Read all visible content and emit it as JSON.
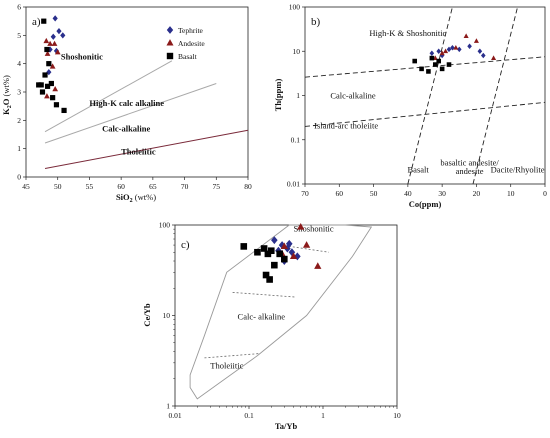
{
  "colors": {
    "tephrite": "#2a2f8c",
    "andesite": "#8b1a1a",
    "basalt": "#000000",
    "boundary_a": "#a9a9a9",
    "boundary_dark": "#7a2a3a",
    "field_outline": "#9a9a9a"
  },
  "chart_data": [
    {
      "type": "scatter",
      "panel_label": "a)",
      "xlabel": "SiO2 (wt%)",
      "ylabel": "K2O (wt%)",
      "xlim": [
        45,
        80
      ],
      "ylim": [
        0,
        6
      ],
      "xticks": [
        "45",
        "50",
        "55",
        "60",
        "65",
        "70",
        "75",
        "80"
      ],
      "yticks": [
        "0",
        "1",
        "2",
        "3",
        "4",
        "5",
        "6"
      ],
      "legend": {
        "placement": "top-right",
        "entries": [
          {
            "name": "Tephrite",
            "marker": "diamond",
            "color_key": "tephrite"
          },
          {
            "name": "Andesite",
            "marker": "triangle",
            "color_key": "andesite"
          },
          {
            "name": "Basalt",
            "marker": "square",
            "color_key": "basalt"
          }
        ]
      },
      "field_labels": [
        {
          "text": "Shoshonitic",
          "x": 50.5,
          "y": 4.15,
          "bold": true
        },
        {
          "text": "High-K calc alkaline",
          "x": 55,
          "y": 2.5,
          "bold": true
        },
        {
          "text": "Calc-alkaline",
          "x": 57,
          "y": 1.6,
          "bold": true
        },
        {
          "text": "Tholeiitic",
          "x": 60,
          "y": 0.8,
          "bold": true
        }
      ],
      "boundaries": [
        {
          "points": [
            [
              48,
              1.6
            ],
            [
              68,
              4.1
            ]
          ],
          "color_key": "boundary_a"
        },
        {
          "points": [
            [
              48,
              1.2
            ],
            [
              75,
              3.3
            ]
          ],
          "color_key": "boundary_a"
        },
        {
          "points": [
            [
              48,
              0.3
            ],
            [
              80,
              1.65
            ]
          ],
          "color_key": "boundary_dark"
        }
      ],
      "series": [
        {
          "name": "Tephrite",
          "marker": "diamond",
          "color_key": "tephrite",
          "points": [
            [
              49.6,
              5.6
            ],
            [
              50.2,
              5.15
            ],
            [
              50.8,
              5.0
            ],
            [
              49.3,
              4.95
            ],
            [
              48.8,
              4.5
            ],
            [
              49.8,
              4.45
            ],
            [
              48.6,
              3.7
            ]
          ]
        },
        {
          "name": "Andesite",
          "marker": "triangle",
          "color_key": "andesite",
          "points": [
            [
              48.2,
              4.8
            ],
            [
              48.8,
              4.7
            ],
            [
              49.5,
              4.7
            ],
            [
              50.0,
              4.4
            ],
            [
              48.4,
              4.35
            ],
            [
              49.2,
              3.9
            ],
            [
              49.6,
              3.1
            ],
            [
              48.3,
              2.85
            ]
          ]
        },
        {
          "name": "Basalt",
          "marker": "square",
          "color_key": "basalt",
          "points": [
            [
              47.8,
              5.5
            ],
            [
              48.3,
              4.5
            ],
            [
              48.6,
              4.0
            ],
            [
              48.0,
              3.6
            ],
            [
              49.0,
              3.3
            ],
            [
              47.0,
              3.25
            ],
            [
              47.4,
              3.25
            ],
            [
              48.4,
              3.2
            ],
            [
              47.6,
              3.0
            ],
            [
              49.2,
              2.8
            ],
            [
              49.8,
              2.55
            ],
            [
              51.0,
              2.35
            ]
          ]
        }
      ]
    },
    {
      "type": "scatter",
      "panel_label": "b)",
      "xlabel": "Co(ppm)",
      "ylabel": "Th(ppm)",
      "xlim": [
        70,
        0
      ],
      "ylim": [
        0.01,
        100
      ],
      "yscale": "log",
      "xticks": [
        "70",
        "60",
        "50",
        "40",
        "30",
        "20",
        "10",
        "0"
      ],
      "yticks": [
        "0.01",
        "0.1",
        "1",
        "10",
        "100"
      ],
      "field_labels": [
        {
          "text": "High-K & Shoshonitic",
          "x": 40,
          "y": 22
        },
        {
          "text": "Calc-alkaline",
          "x": 56,
          "y": 0.85
        },
        {
          "text": "Island-arc tholeiite",
          "x": 58,
          "y": 0.18
        },
        {
          "text": "Basalt",
          "x": 37,
          "y": 0.018
        },
        {
          "text": "basaltic andesite/",
          "x": 22,
          "y": 0.026
        },
        {
          "text": "andesite",
          "x": 22,
          "y": 0.017
        },
        {
          "text": "Dacite/Rhyolite",
          "x": 8,
          "y": 0.018
        }
      ],
      "boundaries": [
        {
          "points": [
            [
              70,
              2.6
            ],
            [
              0,
              7.5
            ]
          ],
          "style": "dashed"
        },
        {
          "points": [
            [
              70,
              0.2
            ],
            [
              0,
              0.7
            ]
          ],
          "style": "dashed"
        },
        {
          "points": [
            [
              40,
              0.01
            ],
            [
              27,
              100
            ]
          ],
          "style": "dashed"
        },
        {
          "points": [
            [
              21,
              0.01
            ],
            [
              8,
              100
            ]
          ],
          "style": "dashed"
        }
      ],
      "series": [
        {
          "name": "Tephrite",
          "marker": "diamond",
          "color_key": "tephrite",
          "points": [
            [
              31,
              10
            ],
            [
              28,
              11
            ],
            [
              25,
              11
            ],
            [
              22,
              13
            ],
            [
              19,
              10
            ],
            [
              18,
              8
            ],
            [
              30,
              8
            ],
            [
              33,
              9
            ],
            [
              27,
              12
            ]
          ]
        },
        {
          "name": "Andesite",
          "marker": "triangle",
          "color_key": "andesite",
          "points": [
            [
              30,
              9
            ],
            [
              26,
              12
            ],
            [
              23,
              22
            ],
            [
              20,
              17
            ],
            [
              15,
              7
            ],
            [
              29,
              10
            ],
            [
              32,
              7
            ]
          ]
        },
        {
          "name": "Basalt",
          "marker": "square",
          "color_key": "basalt",
          "points": [
            [
              38,
              6
            ],
            [
              36,
              4
            ],
            [
              34,
              3.5
            ],
            [
              32,
              5
            ],
            [
              30,
              4
            ],
            [
              28,
              5
            ],
            [
              31,
              6
            ],
            [
              33,
              7
            ]
          ]
        }
      ]
    },
    {
      "type": "scatter",
      "panel_label": "c)",
      "xlabel": "Ta/Yb",
      "ylabel": "Ce/Yb",
      "xscale": "log",
      "yscale": "log",
      "xlim": [
        0.01,
        10
      ],
      "ylim": [
        1,
        100
      ],
      "xticks": [
        "0.01",
        "0.1",
        "1",
        "10"
      ],
      "yticks": [
        "1",
        "10",
        "100"
      ],
      "field_labels": [
        {
          "text": "Shoshonitic",
          "x": 0.4,
          "y": 85
        },
        {
          "text": "Calc- alkaline",
          "x": 0.07,
          "y": 9
        },
        {
          "text": "Tholeiitic",
          "x": 0.03,
          "y": 2.6
        }
      ],
      "series": [
        {
          "name": "Tephrite",
          "marker": "diamond",
          "color_key": "tephrite",
          "points": [
            [
              0.22,
              68
            ],
            [
              0.28,
              60
            ],
            [
              0.33,
              55
            ],
            [
              0.38,
              50
            ],
            [
              0.45,
              45
            ],
            [
              0.3,
              40
            ],
            [
              0.25,
              52
            ],
            [
              0.35,
              62
            ]
          ]
        },
        {
          "name": "Andesite",
          "marker": "triangle",
          "color_key": "andesite",
          "points": [
            [
              0.5,
              95
            ],
            [
              0.85,
              35
            ],
            [
              0.4,
              45
            ],
            [
              0.3,
              58
            ],
            [
              0.6,
              60
            ],
            [
              0.28,
              48
            ]
          ]
        },
        {
          "name": "Basalt",
          "marker": "square",
          "color_key": "basalt",
          "points": [
            [
              0.085,
              58
            ],
            [
              0.13,
              50
            ],
            [
              0.16,
              55
            ],
            [
              0.18,
              48
            ],
            [
              0.2,
              52
            ],
            [
              0.17,
              28
            ],
            [
              0.19,
              25
            ],
            [
              0.22,
              36
            ],
            [
              0.26,
              48
            ],
            [
              0.3,
              42
            ]
          ]
        }
      ]
    }
  ]
}
